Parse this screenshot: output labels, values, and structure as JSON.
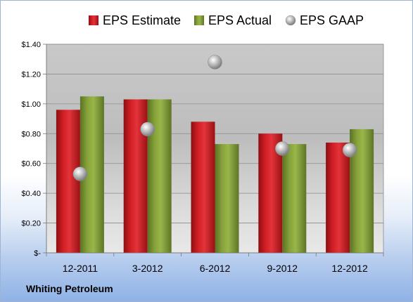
{
  "company": "Whiting Petroleum",
  "colors": {
    "estimate": "#c8171d",
    "actual": "#7f9a34",
    "gaap": "#b8b8b8"
  },
  "legend": [
    {
      "key": "estimate",
      "label": "EPS Estimate",
      "marker": "square"
    },
    {
      "key": "actual",
      "label": "EPS Actual",
      "marker": "square"
    },
    {
      "key": "gaap",
      "label": "EPS GAAP",
      "marker": "circle"
    }
  ],
  "chart_data": {
    "type": "bar",
    "categories": [
      "12-2011",
      "3-2012",
      "6-2012",
      "9-2012",
      "12-2012"
    ],
    "series": [
      {
        "name": "EPS Estimate",
        "key": "estimate",
        "kind": "bar",
        "values": [
          0.96,
          1.03,
          0.88,
          0.8,
          0.74
        ]
      },
      {
        "name": "EPS Actual",
        "key": "actual",
        "kind": "bar",
        "values": [
          1.05,
          1.03,
          0.73,
          0.73,
          0.83
        ]
      },
      {
        "name": "EPS GAAP",
        "key": "gaap",
        "kind": "marker",
        "values": [
          0.53,
          0.83,
          1.28,
          0.7,
          0.69
        ]
      }
    ],
    "ylim": [
      0,
      1.4
    ],
    "yticks": [
      {
        "value": 0,
        "label": "$-"
      },
      {
        "value": 0.2,
        "label": "$0.20"
      },
      {
        "value": 0.4,
        "label": "$0.40"
      },
      {
        "value": 0.6,
        "label": "$0.60"
      },
      {
        "value": 0.8,
        "label": "$0.80"
      },
      {
        "value": 1.0,
        "label": "$1.00"
      },
      {
        "value": 1.2,
        "label": "$1.20"
      },
      {
        "value": 1.4,
        "label": "$1.40"
      }
    ],
    "grid": true,
    "legend_position": "top"
  }
}
